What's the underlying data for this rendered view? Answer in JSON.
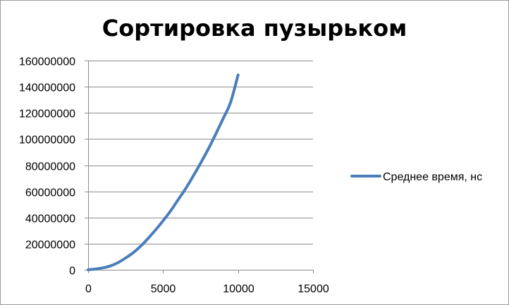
{
  "chart_data": {
    "type": "line",
    "title": "Сортировка пузырьком",
    "xlabel": "",
    "ylabel": "",
    "xlim": [
      0,
      15000
    ],
    "ylim": [
      0,
      160000000
    ],
    "x_ticks": [
      0,
      5000,
      10000,
      15000
    ],
    "x_tick_labels": [
      "0",
      "5000",
      "10000",
      "15000"
    ],
    "y_ticks": [
      0,
      20000000,
      40000000,
      60000000,
      80000000,
      100000000,
      120000000,
      140000000,
      160000000
    ],
    "y_tick_labels": [
      "0",
      "20000000",
      "40000000",
      "60000000",
      "80000000",
      "100000000",
      "120000000",
      "140000000",
      "160000000"
    ],
    "grid": "horizontal",
    "legend_position": "right",
    "series": [
      {
        "name": "Среднее время, нс",
        "color": "#4a7ebb",
        "x": [
          0,
          500,
          1000,
          1500,
          2000,
          2500,
          3000,
          3500,
          4000,
          4500,
          5000,
          5500,
          6000,
          6500,
          7000,
          7500,
          8000,
          8500,
          9000,
          9500,
          10000
        ],
        "y": [
          0,
          600000,
          1500000,
          3000000,
          5500000,
          9000000,
          13000000,
          18000000,
          24000000,
          30500000,
          37500000,
          45000000,
          53500000,
          62000000,
          71500000,
          81500000,
          92000000,
          103500000,
          115500000,
          128000000,
          149000000
        ]
      }
    ]
  }
}
